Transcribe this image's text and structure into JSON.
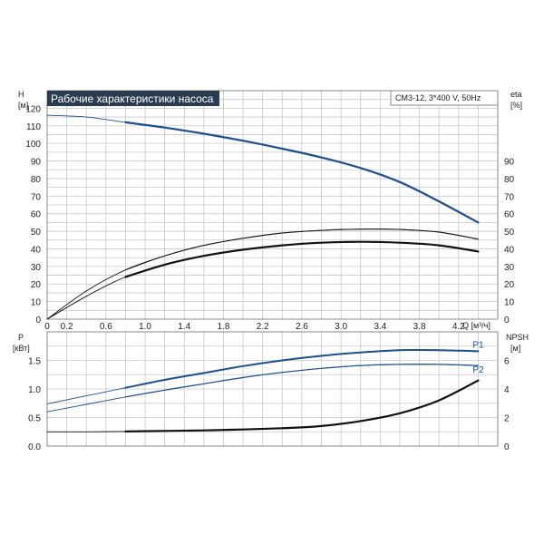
{
  "header": {
    "title": "Рабочие характеристики насоса",
    "model": "CM3-12, 3*400 V, 50Hz"
  },
  "colors": {
    "blue": "#1f4e8c",
    "black": "#111111",
    "grid": "#c8c8c8",
    "title_bg": "#2a3d50"
  },
  "axes": {
    "q_label": "Q [м³/ч]",
    "h_label": "H",
    "h_unit": "[м]",
    "eta_label": "eta",
    "eta_unit": "[%]",
    "p_label": "P",
    "p_unit": "[кВт]",
    "npsh_label": "NPSH",
    "npsh_unit": "[м]"
  },
  "chart_data": [
    {
      "type": "line",
      "panel": "head-efficiency",
      "x": [
        0,
        0.8,
        1.6,
        2.4,
        3.2,
        3.6,
        4.0,
        4.4
      ],
      "xticks": [
        "0",
        "0.2",
        "0.6",
        "1.0",
        "1.4",
        "1.8",
        "2.2",
        "2.6",
        "3.0",
        "3.4",
        "3.8",
        "4.2"
      ],
      "xtick_values": [
        0,
        0.2,
        0.6,
        1.0,
        1.4,
        1.8,
        2.2,
        2.6,
        3.0,
        3.4,
        3.8,
        4.2
      ],
      "xlim": [
        0,
        4.6
      ],
      "ylim_left": [
        0,
        130
      ],
      "yticks_left": [
        0,
        10,
        20,
        30,
        40,
        50,
        60,
        70,
        80,
        90,
        100,
        110,
        120
      ],
      "ylim_right": [
        0,
        130
      ],
      "yticks_right": [
        0,
        10,
        20,
        30,
        40,
        50,
        60,
        70,
        80,
        90
      ],
      "grid": true,
      "series": [
        {
          "id": "H",
          "axis": "left",
          "color": "#1f4e8c",
          "x": [
            0,
            0.4,
            0.8,
            1.2,
            1.6,
            2.0,
            2.4,
            2.8,
            3.2,
            3.6,
            4.0,
            4.4
          ],
          "values": [
            116,
            115,
            112,
            109,
            105.5,
            101.5,
            97,
            92,
            86,
            78,
            67,
            55
          ],
          "dim_until": 0.8
        },
        {
          "id": "eta_thin",
          "axis": "right",
          "color": "#111111",
          "width": 1,
          "x": [
            0,
            0.4,
            0.8,
            1.2,
            1.6,
            2.0,
            2.4,
            2.8,
            3.2,
            3.6,
            4.0,
            4.4
          ],
          "values": [
            0,
            16,
            28,
            36,
            42,
            46,
            49,
            50.5,
            51.2,
            51,
            49.5,
            45.5
          ],
          "dim_until": 0.8
        },
        {
          "id": "eta_bold",
          "axis": "right",
          "color": "#111111",
          "width": 2.2,
          "x": [
            0,
            0.4,
            0.8,
            1.2,
            1.6,
            2.0,
            2.4,
            2.8,
            3.2,
            3.6,
            4.0,
            4.4
          ],
          "values": [
            0,
            13,
            24,
            31,
            36,
            39.5,
            42,
            43.5,
            44,
            43.5,
            42,
            38.5
          ],
          "dim_until": 0.8
        }
      ]
    },
    {
      "type": "line",
      "panel": "power-npsh",
      "xlim": [
        0,
        4.6
      ],
      "ylim_left": [
        0,
        2.0
      ],
      "yticks_left": [
        "0.0",
        "0.5",
        "1.0",
        "1.5"
      ],
      "ytick_values_left": [
        0,
        0.5,
        1.0,
        1.5
      ],
      "ylim_right": [
        0,
        8
      ],
      "yticks_right": [
        "0",
        "2",
        "4",
        "6"
      ],
      "ytick_values_right": [
        0,
        2,
        4,
        6
      ],
      "grid": true,
      "series": [
        {
          "id": "P1",
          "name": "P1",
          "axis": "left",
          "color": "#1f4e8c",
          "width": 2,
          "x": [
            0,
            0.4,
            0.8,
            1.2,
            1.6,
            2.0,
            2.4,
            2.8,
            3.2,
            3.6,
            4.0,
            4.4
          ],
          "values": [
            0.74,
            0.88,
            1.02,
            1.16,
            1.28,
            1.4,
            1.5,
            1.58,
            1.64,
            1.68,
            1.68,
            1.66
          ],
          "dim_until": 0.8
        },
        {
          "id": "P2",
          "name": "P2",
          "axis": "left",
          "color": "#1f4e8c",
          "width": 1.2,
          "x": [
            0,
            0.4,
            0.8,
            1.2,
            1.6,
            2.0,
            2.4,
            2.8,
            3.2,
            3.6,
            4.0,
            4.4
          ],
          "values": [
            0.6,
            0.73,
            0.86,
            0.98,
            1.09,
            1.2,
            1.29,
            1.36,
            1.41,
            1.43,
            1.43,
            1.41
          ],
          "dim_until": 0.8
        },
        {
          "id": "NPSH",
          "axis": "right",
          "color": "#111111",
          "width": 2.2,
          "x": [
            0,
            0.4,
            0.8,
            1.2,
            1.6,
            2.0,
            2.4,
            2.8,
            3.2,
            3.6,
            4.0,
            4.4
          ],
          "values": [
            1.0,
            1.0,
            1.02,
            1.06,
            1.1,
            1.16,
            1.25,
            1.4,
            1.75,
            2.3,
            3.2,
            4.6
          ],
          "dim_until": 0.8
        }
      ]
    }
  ]
}
